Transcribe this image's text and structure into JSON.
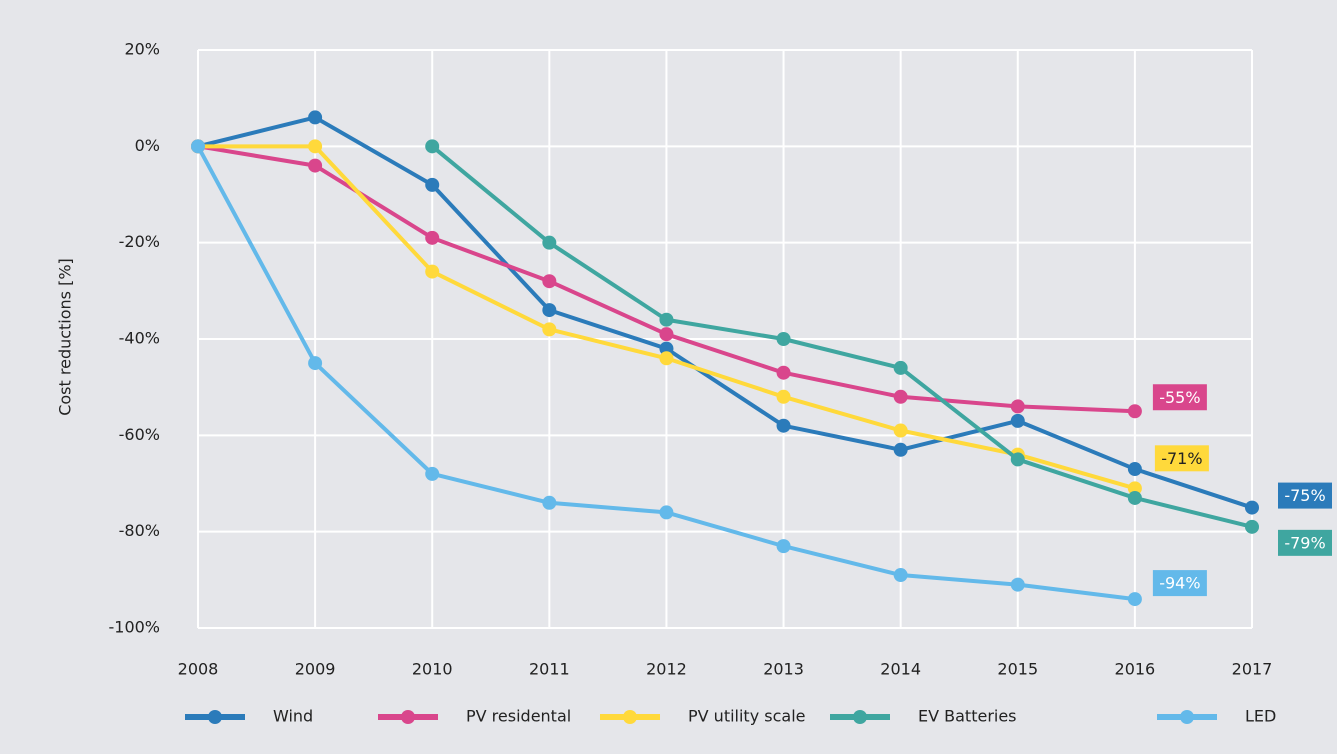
{
  "chart_data": {
    "type": "line",
    "y_label": "Cost reductions [%]",
    "categories": [
      "2008",
      "2009",
      "2010",
      "2011",
      "2012",
      "2013",
      "2014",
      "2015",
      "2016",
      "2017"
    ],
    "ylim": [
      -100,
      20
    ],
    "yticks": [
      {
        "value": -100,
        "label": "-100%"
      },
      {
        "value": -80,
        "label": "-80%"
      },
      {
        "value": -60,
        "label": "-60%"
      },
      {
        "value": -40,
        "label": "-40%"
      },
      {
        "value": -20,
        "label": "-20%"
      },
      {
        "value": 0,
        "label": "0%"
      },
      {
        "value": 20,
        "label": "20%"
      }
    ],
    "grid": true,
    "series": [
      {
        "name": "Wind",
        "color": "#2b7bba",
        "values": [
          0,
          6,
          -8,
          -34,
          -42,
          -58,
          -63,
          -57,
          -67,
          -75
        ],
        "value_labels": [
          null,
          null,
          null,
          null,
          null,
          null,
          null,
          null,
          null,
          "-75%"
        ]
      },
      {
        "name": "PV residental",
        "color": "#d9468c",
        "values": [
          0,
          -4,
          -19,
          -28,
          -39,
          -47,
          -52,
          -54,
          -55,
          null
        ],
        "value_labels": [
          null,
          null,
          null,
          null,
          null,
          null,
          null,
          null,
          "-55%",
          null
        ]
      },
      {
        "name": "PV utility scale",
        "color": "#ffd93b",
        "values": [
          0,
          0,
          -26,
          -38,
          -44,
          -52,
          -59,
          -64,
          -71,
          null
        ],
        "value_labels": [
          null,
          null,
          null,
          null,
          null,
          null,
          null,
          null,
          "-71%",
          null
        ]
      },
      {
        "name": "EV Batteries",
        "color": "#3fa6a0",
        "values": [
          null,
          null,
          0,
          -20,
          -36,
          -40,
          -46,
          -65,
          -73,
          -79
        ],
        "value_labels": [
          null,
          null,
          null,
          null,
          null,
          null,
          null,
          null,
          null,
          "-79%"
        ]
      },
      {
        "name": "LED",
        "color": "#63b9ea",
        "values": [
          0,
          -45,
          -68,
          -74,
          -76,
          -83,
          -89,
          -91,
          -94,
          null
        ],
        "value_labels": [
          null,
          null,
          null,
          null,
          null,
          null,
          null,
          null,
          "-94%",
          null
        ]
      }
    ]
  }
}
